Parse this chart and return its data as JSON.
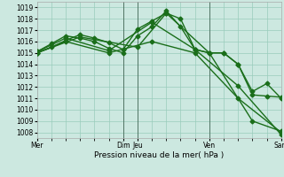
{
  "background_color": "#cce8e0",
  "grid_color": "#99ccbb",
  "line_color": "#1a6e1a",
  "xlabel": "Pression niveau de la mer( hPa )",
  "ylim": [
    1007.5,
    1019.5
  ],
  "yticks": [
    1008,
    1009,
    1010,
    1011,
    1012,
    1013,
    1014,
    1015,
    1016,
    1017,
    1018,
    1019
  ],
  "xtick_labels": [
    "Mer",
    "Dim",
    "Jeu",
    "Ven",
    "Sam"
  ],
  "xtick_positions": [
    0,
    6,
    7,
    12,
    17
  ],
  "series": [
    {
      "x": [
        0,
        1,
        2,
        3,
        4,
        5,
        6,
        7,
        8,
        9,
        10,
        11,
        12,
        13,
        14,
        15,
        16,
        17
      ],
      "y": [
        1015.0,
        1015.5,
        1016.1,
        1016.6,
        1016.3,
        1015.9,
        1015.3,
        1017.1,
        1017.8,
        1018.5,
        1018.0,
        1015.3,
        1015.0,
        1015.0,
        1014.0,
        1011.6,
        1012.3,
        1011.0
      ]
    },
    {
      "x": [
        0,
        1,
        2,
        3,
        4,
        5,
        6,
        7,
        8,
        9,
        10,
        11,
        12,
        13,
        14,
        15,
        16,
        17
      ],
      "y": [
        1015.1,
        1015.8,
        1016.5,
        1016.3,
        1016.0,
        1015.4,
        1015.0,
        1016.5,
        1017.3,
        1018.7,
        1017.3,
        1015.3,
        1015.0,
        1015.0,
        1014.0,
        1011.3,
        1011.2,
        1011.1
      ]
    },
    {
      "x": [
        0,
        2,
        5,
        8,
        11,
        14,
        17
      ],
      "y": [
        1015.1,
        1016.3,
        1015.2,
        1017.7,
        1015.3,
        1012.1,
        1007.8
      ]
    },
    {
      "x": [
        0,
        2,
        5,
        8,
        11,
        14,
        17
      ],
      "y": [
        1015.0,
        1016.0,
        1015.0,
        1016.0,
        1015.0,
        1011.0,
        1008.0
      ]
    },
    {
      "x": [
        0,
        3,
        7,
        9,
        12,
        15,
        17
      ],
      "y": [
        1015.0,
        1016.4,
        1015.5,
        1018.5,
        1015.0,
        1009.0,
        1008.1
      ]
    }
  ],
  "vlines": [
    6,
    7,
    12,
    17
  ],
  "marker": "D",
  "markersize": 2.5,
  "linewidth": 1.0
}
